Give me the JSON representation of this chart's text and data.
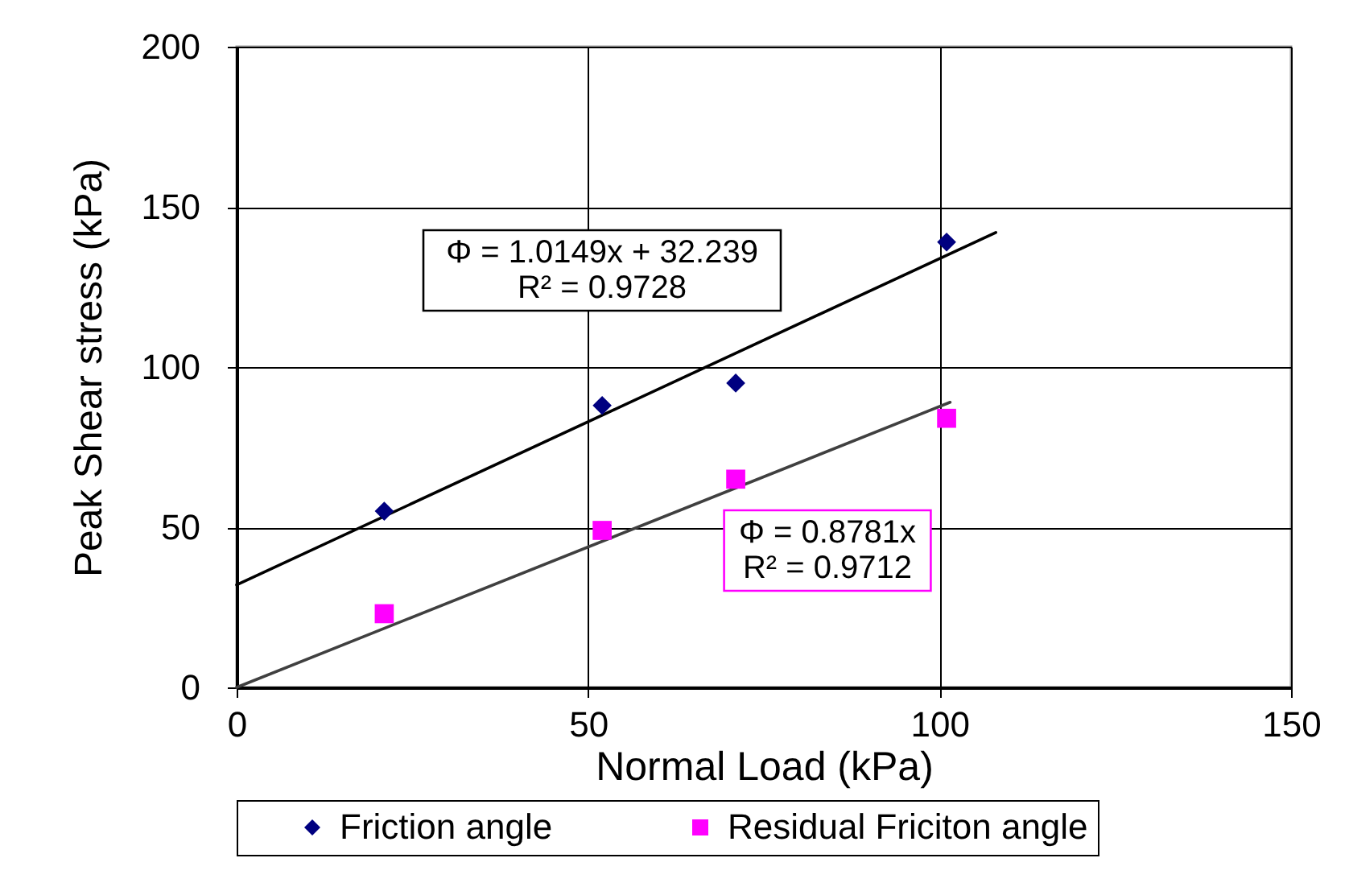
{
  "chart_data": {
    "type": "scatter",
    "xlabel": "Normal Load (kPa)",
    "ylabel": "Peak Shear stress (kPa)",
    "xlim": [
      0,
      150
    ],
    "xticks": [
      0,
      50,
      100,
      150
    ],
    "ylim": [
      0,
      200
    ],
    "yticks": [
      0,
      50,
      100,
      150,
      200
    ],
    "grid": true,
    "legend": "bottom",
    "series": [
      {
        "name": "Friction angle",
        "color": "#000080",
        "marker": "diamond",
        "x": [
          21,
          52,
          71,
          101
        ],
        "values": [
          55,
          88,
          95,
          139
        ]
      },
      {
        "name": "Residual Friciton angle",
        "color": "#ff00ff",
        "marker": "square",
        "x": [
          21,
          52,
          71,
          101
        ],
        "values": [
          23,
          49,
          65,
          84
        ]
      },
      {
        "type": "line",
        "color": "#000000",
        "x": [
          0,
          108
        ],
        "values": [
          32,
          142
        ]
      },
      {
        "type": "line",
        "color": "#404040",
        "x": [
          0,
          101.5
        ],
        "values": [
          0,
          89
        ]
      }
    ],
    "annotations": [
      "Φ = 1.0149x + 32.239\nR² = 0.9728",
      "Φ = 0.8781x\nR² = 0.9712"
    ]
  }
}
